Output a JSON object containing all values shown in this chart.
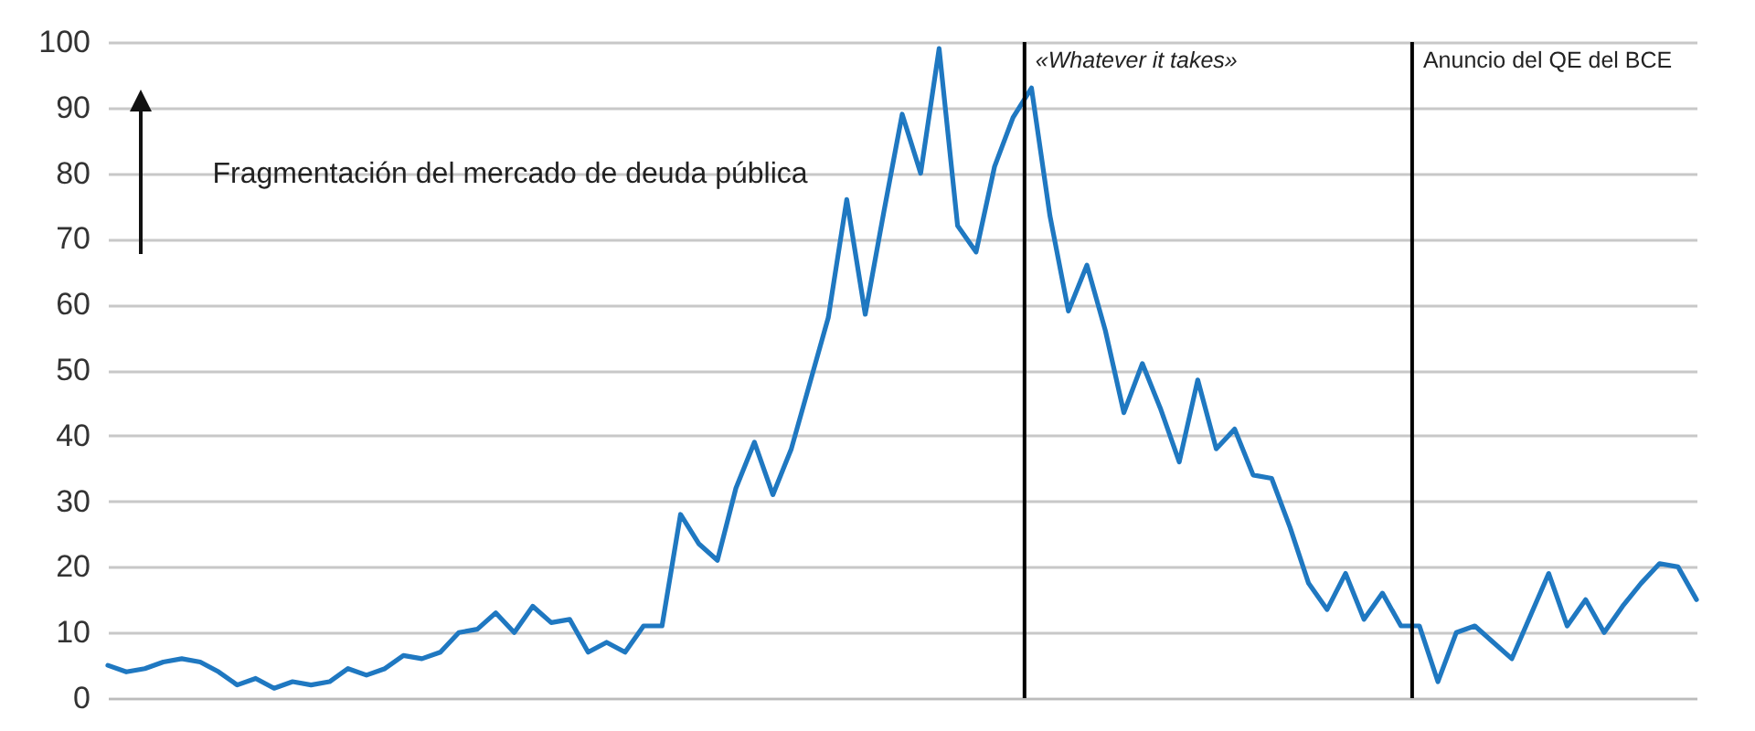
{
  "chart_data": {
    "type": "line",
    "categories": [
      null,
      null,
      null,
      null,
      null,
      null,
      null,
      null,
      null,
      null,
      null,
      null,
      null,
      null,
      null,
      null,
      null,
      null,
      null,
      null,
      null,
      null,
      null,
      null,
      null,
      null,
      null,
      null,
      null,
      null,
      null,
      null,
      null,
      null,
      null,
      null,
      null,
      null,
      null,
      null,
      null,
      null,
      null,
      null,
      null,
      null,
      null,
      null,
      null,
      null,
      null,
      null,
      null,
      null,
      null,
      null,
      null,
      null,
      null,
      null,
      null,
      null,
      null,
      null,
      null,
      null,
      null,
      null,
      null,
      null,
      null,
      null,
      null,
      null,
      null,
      null,
      null,
      null,
      null,
      null,
      null,
      null,
      null,
      null,
      null,
      null,
      null
    ],
    "series": [
      {
        "color": "#1f78c1",
        "values": [
          5,
          4,
          4.5,
          5.5,
          6,
          5.5,
          4,
          2,
          3,
          1.5,
          2.5,
          2,
          2.5,
          4.5,
          3.5,
          4.5,
          6.5,
          6,
          7,
          10,
          10.5,
          13,
          10,
          14,
          11.5,
          12,
          7,
          8.5,
          7,
          11,
          11,
          28,
          23.5,
          21,
          32,
          39,
          31,
          38,
          48,
          58,
          76,
          58.5,
          74,
          89,
          80,
          99,
          72,
          68,
          81,
          88.5,
          93,
          73.5,
          59,
          66,
          56,
          43.5,
          51,
          44,
          36,
          48.5,
          38,
          41,
          34,
          33.5,
          26,
          17.5,
          13.5,
          19,
          12,
          16,
          11,
          11,
          2.5,
          10,
          11,
          8.5,
          6,
          12.5,
          19,
          11,
          15,
          10,
          14,
          17.5,
          20.5,
          20,
          15
        ]
      }
    ],
    "ylim": [
      0,
      100
    ],
    "yticks": [
      0,
      10,
      20,
      30,
      40,
      50,
      60,
      70,
      80,
      90,
      100
    ],
    "tick_labels": "y",
    "grid": "y",
    "annotations": [
      "Fragmentación del mercado de deuda pública",
      "«Whatever it takes»",
      "Anuncio del QE del BCE"
    ]
  }
}
